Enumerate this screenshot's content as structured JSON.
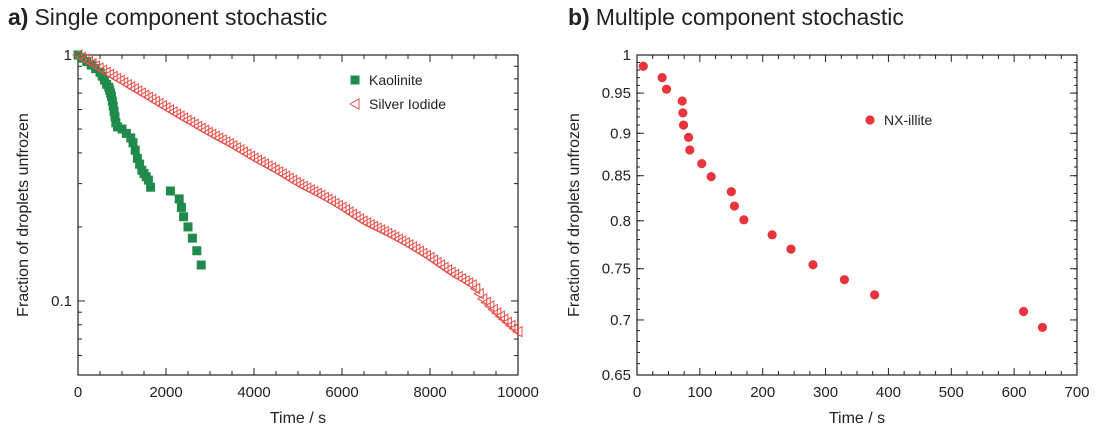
{
  "panels": [
    {
      "letter": "a)",
      "title": "Single component stochastic"
    },
    {
      "letter": "b)",
      "title": "Multiple component stochastic"
    }
  ],
  "colors": {
    "kaolinite": "#1f8a4c",
    "silver_iodide": "#e8504a",
    "nx_illite": "#e8343a",
    "axis": "#222222"
  },
  "chart_data": [
    {
      "type": "scatter",
      "title": "Single component stochastic",
      "xlabel": "Time / s",
      "ylabel": "Fraction of droplets unfrozen",
      "xlim": [
        0,
        10000
      ],
      "ylim": [
        0.05,
        1
      ],
      "yscale": "log",
      "xticks": [
        0,
        2000,
        4000,
        6000,
        8000,
        10000
      ],
      "yticks": [
        {
          "value": 0.1,
          "label": "0.1"
        },
        {
          "value": 1,
          "label": "1"
        }
      ],
      "legend_position": "top-right",
      "series": [
        {
          "name": "Kaolinite",
          "marker": "filled-square",
          "x": [
            0,
            100,
            200,
            300,
            400,
            500,
            550,
            600,
            650,
            700,
            720,
            740,
            760,
            780,
            800,
            820,
            840,
            860,
            900,
            1000,
            1100,
            1200,
            1250,
            1300,
            1350,
            1400,
            1450,
            1500,
            1550,
            1600,
            1650,
            2100,
            2300,
            2350,
            2400,
            2500,
            2600,
            2700,
            2800
          ],
          "y": [
            1.0,
            0.97,
            0.94,
            0.91,
            0.88,
            0.85,
            0.82,
            0.79,
            0.76,
            0.74,
            0.72,
            0.7,
            0.68,
            0.65,
            0.62,
            0.59,
            0.56,
            0.53,
            0.51,
            0.5,
            0.48,
            0.46,
            0.44,
            0.41,
            0.38,
            0.36,
            0.34,
            0.33,
            0.32,
            0.31,
            0.29,
            0.28,
            0.26,
            0.24,
            0.22,
            0.2,
            0.18,
            0.16,
            0.14
          ]
        },
        {
          "name": "Silver Iodide",
          "marker": "open-triangle-left",
          "x_start": 0,
          "x_end": 10000,
          "x_step": 80,
          "y_formula_note": "",
          "x": [
            0,
            500,
            1000,
            1500,
            2000,
            2500,
            3000,
            3500,
            4000,
            4500,
            5000,
            5500,
            6000,
            6500,
            7000,
            7500,
            8000,
            8500,
            9000,
            9200,
            9500,
            10000
          ],
          "y": [
            1.0,
            0.88,
            0.78,
            0.69,
            0.61,
            0.54,
            0.48,
            0.43,
            0.38,
            0.34,
            0.3,
            0.27,
            0.24,
            0.21,
            0.19,
            0.17,
            0.15,
            0.13,
            0.115,
            0.102,
            0.09,
            0.075
          ]
        }
      ]
    },
    {
      "type": "scatter",
      "title": "Multiple component stochastic",
      "xlabel": "Time / s",
      "ylabel": "Fraction of droplets unfrozen",
      "xlim": [
        0,
        700
      ],
      "ylim": [
        0.65,
        1
      ],
      "yscale": "log",
      "xticks": [
        0,
        100,
        200,
        300,
        400,
        500,
        600,
        700
      ],
      "yticks": [
        {
          "value": 0.65,
          "label": "0.65"
        },
        {
          "value": 0.7,
          "label": "0.7"
        },
        {
          "value": 0.75,
          "label": "0.75"
        },
        {
          "value": 0.8,
          "label": "0.8"
        },
        {
          "value": 0.85,
          "label": "0.85"
        },
        {
          "value": 0.9,
          "label": "0.9"
        },
        {
          "value": 0.95,
          "label": "0.95"
        },
        {
          "value": 1,
          "label": "1"
        }
      ],
      "legend_position": "top-right",
      "series": [
        {
          "name": "NX-illite",
          "marker": "filled-circle",
          "x": [
            10,
            40,
            47,
            72,
            73,
            74,
            82,
            84,
            103,
            118,
            150,
            155,
            170,
            215,
            245,
            280,
            330,
            378,
            615,
            645
          ],
          "y": [
            0.985,
            0.97,
            0.955,
            0.94,
            0.925,
            0.91,
            0.895,
            0.88,
            0.864,
            0.849,
            0.832,
            0.816,
            0.801,
            0.785,
            0.77,
            0.754,
            0.739,
            0.724,
            0.708,
            0.693
          ]
        }
      ]
    }
  ]
}
